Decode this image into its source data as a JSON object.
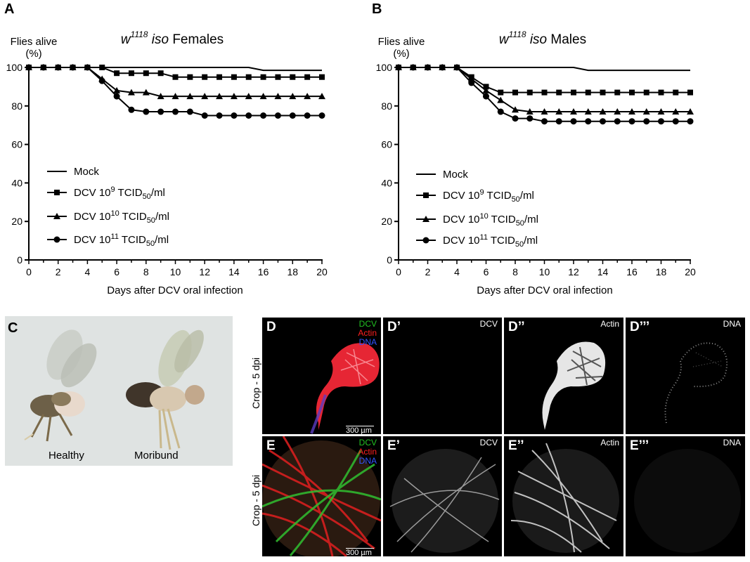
{
  "panels": {
    "a": "A",
    "b": "B",
    "c": "C",
    "d": "D",
    "d1": "D’",
    "d2": "D’’",
    "d3": "D’’’",
    "e": "E",
    "e1": "E’",
    "e2": "E’’",
    "e3": "E’’’"
  },
  "charts": {
    "a": {
      "ylabel_line1": "Flies alive",
      "ylabel_line2": "(%)",
      "title_base": "w",
      "title_sup": "1118",
      "title_iso": "iso",
      "title_rest": "Females",
      "xlabel": "Days after DCV oral infection"
    },
    "b": {
      "ylabel_line1": "Flies alive",
      "ylabel_line2": "(%)",
      "title_base": "w",
      "title_sup": "1118",
      "title_iso": "iso",
      "title_rest": "Males",
      "xlabel": "Days after DCV oral infection"
    }
  },
  "legend": {
    "mock": "Mock",
    "dcv_prefix": "DCV 10",
    "exp9": "9",
    "exp10": "10",
    "exp11": "11",
    "tcid": " TCID",
    "tcid_sub": "50",
    "unit": "/ml"
  },
  "panel_c": {
    "healthy": "Healthy",
    "moribund": "Moribund"
  },
  "microscopy": {
    "row_label": "Crop - 5 dpi",
    "dcv": "DCV",
    "actin": "Actin",
    "dna": "DNA",
    "scale": "300 µm",
    "colors": {
      "dcv": "#22c022",
      "actin": "#ff2020",
      "dna": "#3355ff"
    }
  },
  "chart_data": [
    {
      "type": "line",
      "title": "w1118 iso Females",
      "xlabel": "Days after DCV oral infection",
      "ylabel": "Flies alive (%)",
      "xlim": [
        0,
        20
      ],
      "ylim": [
        0,
        100
      ],
      "xticks": [
        0,
        2,
        4,
        6,
        8,
        10,
        12,
        14,
        16,
        18,
        20
      ],
      "yticks": [
        0,
        20,
        40,
        60,
        80,
        100
      ],
      "x": [
        0,
        1,
        2,
        3,
        4,
        5,
        6,
        7,
        8,
        9,
        10,
        11,
        12,
        13,
        14,
        15,
        16,
        17,
        18,
        19,
        20
      ],
      "series": [
        {
          "name": "Mock",
          "marker": "none",
          "values": [
            100,
            100,
            100,
            100,
            100,
            100,
            100,
            100,
            100,
            100,
            100,
            100,
            100,
            100,
            100,
            100,
            98.5,
            98.5,
            98.5,
            98.5,
            98.5
          ]
        },
        {
          "name": "DCV 10^9 TCID50/ml",
          "marker": "square",
          "values": [
            100,
            100,
            100,
            100,
            100,
            100,
            97,
            97,
            97,
            97,
            95,
            95,
            95,
            95,
            95,
            95,
            95,
            95,
            95,
            95,
            95
          ]
        },
        {
          "name": "DCV 10^10 TCID50/ml",
          "marker": "triangle",
          "values": [
            100,
            100,
            100,
            100,
            100,
            94,
            88,
            87,
            87,
            85,
            85,
            85,
            85,
            85,
            85,
            85,
            85,
            85,
            85,
            85,
            85
          ]
        },
        {
          "name": "DCV 10^11 TCID50/ml",
          "marker": "circle",
          "values": [
            100,
            100,
            100,
            100,
            100,
            93,
            85,
            78,
            77,
            77,
            77,
            77,
            75,
            75,
            75,
            75,
            75,
            75,
            75,
            75,
            75
          ]
        }
      ]
    },
    {
      "type": "line",
      "title": "w1118 iso Males",
      "xlabel": "Days after DCV oral infection",
      "ylabel": "Flies alive (%)",
      "xlim": [
        0,
        20
      ],
      "ylim": [
        0,
        100
      ],
      "xticks": [
        0,
        2,
        4,
        6,
        8,
        10,
        12,
        14,
        16,
        18,
        20
      ],
      "yticks": [
        0,
        20,
        40,
        60,
        80,
        100
      ],
      "x": [
        0,
        1,
        2,
        3,
        4,
        5,
        6,
        7,
        8,
        9,
        10,
        11,
        12,
        13,
        14,
        15,
        16,
        17,
        18,
        19,
        20
      ],
      "series": [
        {
          "name": "Mock",
          "marker": "none",
          "values": [
            100,
            100,
            100,
            100,
            100,
            100,
            100,
            100,
            100,
            100,
            100,
            100,
            100,
            98.5,
            98.5,
            98.5,
            98.5,
            98.5,
            98.5,
            98.5,
            98.5
          ]
        },
        {
          "name": "DCV 10^9 TCID50/ml",
          "marker": "square",
          "values": [
            100,
            100,
            100,
            100,
            100,
            95,
            90,
            87,
            87,
            87,
            87,
            87,
            87,
            87,
            87,
            87,
            87,
            87,
            87,
            87,
            87
          ]
        },
        {
          "name": "DCV 10^10 TCID50/ml",
          "marker": "triangle",
          "values": [
            100,
            100,
            100,
            100,
            100,
            94,
            88,
            83,
            78,
            77,
            77,
            77,
            77,
            77,
            77,
            77,
            77,
            77,
            77,
            77,
            77
          ]
        },
        {
          "name": "DCV 10^11 TCID50/ml",
          "marker": "circle",
          "values": [
            100,
            100,
            100,
            100,
            100,
            92,
            85,
            77,
            73.5,
            73.5,
            72,
            72,
            72,
            72,
            72,
            72,
            72,
            72,
            72,
            72,
            72
          ]
        }
      ]
    }
  ]
}
